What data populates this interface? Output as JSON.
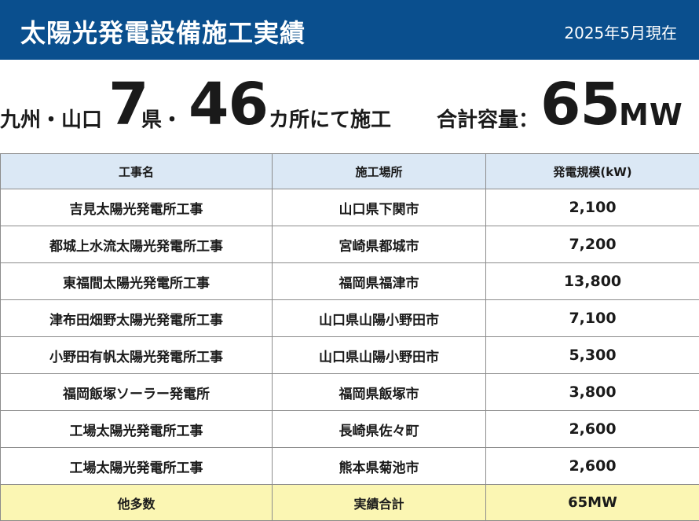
{
  "header": {
    "title": "太陽光発電設備施工実績",
    "date": "2025年5月現在"
  },
  "summary": {
    "region_prefix": "九州・山口",
    "prefecture_count": "7",
    "prefecture_suffix": "県・",
    "site_count": "46",
    "site_suffix": "カ所にて施工",
    "capacity_label": "合計容量：",
    "capacity_value": "65",
    "capacity_unit": "MW"
  },
  "table": {
    "headers": [
      "工事名",
      "施工場所",
      "発電規模(kW)"
    ],
    "rows": [
      [
        "吉見太陽光発電所工事",
        "山口県下関市",
        "2,100"
      ],
      [
        "都城上水流太陽光発電所工事",
        "宮崎県都城市",
        "7,200"
      ],
      [
        "東福間太陽光発電所工事",
        "福岡県福津市",
        "13,800"
      ],
      [
        "津布田畑野太陽光発電所工事",
        "山口県山陽小野田市",
        "7,100"
      ],
      [
        "小野田有帆太陽光発電所工事",
        "山口県山陽小野田市",
        "5,300"
      ],
      [
        "福岡飯塚ソーラー発電所",
        "福岡県飯塚市",
        "3,800"
      ],
      [
        "工場太陽光発電所工事",
        "長崎県佐々町",
        "2,600"
      ],
      [
        "工場太陽光発電所工事",
        "熊本県菊池市",
        "2,600"
      ]
    ],
    "total": [
      "他多数",
      "実績合計",
      "65MW"
    ]
  },
  "colors": {
    "header_bg": "#0a4f8e",
    "table_header_bg": "#dbe8f5",
    "total_row_bg": "#fbf6b3"
  }
}
